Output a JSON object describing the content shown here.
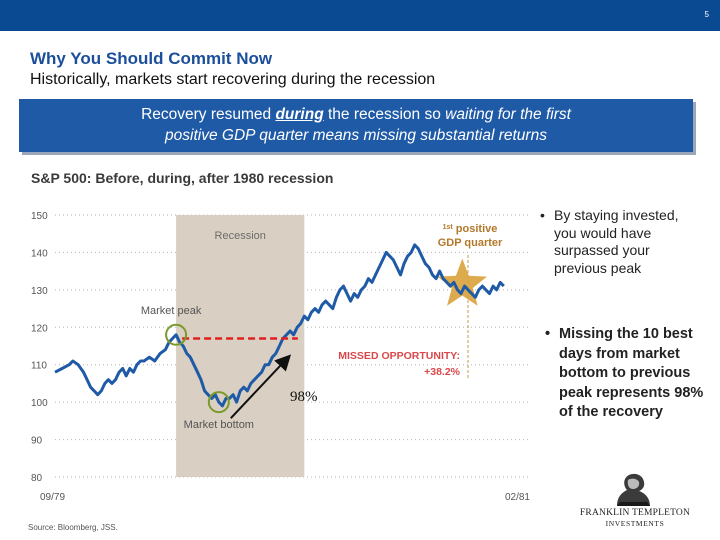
{
  "slide": {
    "page_number": "5",
    "title": "Why You Should Commit Now",
    "subtitle": "Historically, markets start recovering during the recession",
    "banner": {
      "line1_pre": "Recovery resumed ",
      "line1_emph": "during",
      "line1_post": " the recession so ",
      "line1_italic": "waiting for the first",
      "line2": "positive GDP quarter means missing substantial returns"
    },
    "bullets": [
      "By staying invested, you would have surpassed your previous peak",
      "Missing the 10 best days from market bottom to previous peak represents 98% of the recovery"
    ],
    "source": "Source: Bloomberg, JSS.",
    "logo": {
      "line1": "FRANKLIN TEMPLETON",
      "line2": "INVESTMENTS"
    }
  },
  "chart_data": {
    "type": "line",
    "title": "S&P 500: Before, during, after 1980 recession",
    "xlabel": "",
    "ylabel": "",
    "x_ticks": [
      "09/79",
      "02/81"
    ],
    "y_ticks": [
      80,
      90,
      100,
      110,
      120,
      130,
      140,
      150
    ],
    "ylim": [
      80,
      150
    ],
    "x_range_days": [
      0,
      520
    ],
    "series": [
      {
        "name": "S&P 500",
        "points": [
          [
            0,
            108
          ],
          [
            8,
            109
          ],
          [
            16,
            110
          ],
          [
            20,
            111
          ],
          [
            26,
            110
          ],
          [
            32,
            108
          ],
          [
            36,
            106
          ],
          [
            40,
            104
          ],
          [
            44,
            103
          ],
          [
            48,
            102
          ],
          [
            52,
            103
          ],
          [
            56,
            105
          ],
          [
            60,
            106
          ],
          [
            64,
            105
          ],
          [
            68,
            106
          ],
          [
            72,
            108
          ],
          [
            76,
            109
          ],
          [
            80,
            107
          ],
          [
            84,
            109
          ],
          [
            88,
            108
          ],
          [
            92,
            110
          ],
          [
            96,
            111
          ],
          [
            100,
            111
          ],
          [
            106,
            112
          ],
          [
            112,
            111
          ],
          [
            118,
            113
          ],
          [
            124,
            114
          ],
          [
            128,
            116
          ],
          [
            132,
            117
          ],
          [
            136,
            118
          ],
          [
            140,
            116
          ],
          [
            144,
            115
          ],
          [
            148,
            113
          ],
          [
            152,
            112
          ],
          [
            156,
            110
          ],
          [
            160,
            108
          ],
          [
            164,
            106
          ],
          [
            168,
            103
          ],
          [
            172,
            102
          ],
          [
            176,
            101
          ],
          [
            180,
            102
          ],
          [
            184,
            100
          ],
          [
            188,
            99
          ],
          [
            192,
            101
          ],
          [
            196,
            101
          ],
          [
            200,
            102
          ],
          [
            204,
            100
          ],
          [
            208,
            103
          ],
          [
            212,
            104
          ],
          [
            216,
            103
          ],
          [
            220,
            105
          ],
          [
            224,
            106
          ],
          [
            228,
            107
          ],
          [
            232,
            108
          ],
          [
            236,
            110
          ],
          [
            240,
            110
          ],
          [
            244,
            112
          ],
          [
            248,
            113
          ],
          [
            252,
            115
          ],
          [
            256,
            117
          ],
          [
            260,
            118
          ],
          [
            264,
            119
          ],
          [
            268,
            118
          ],
          [
            272,
            120
          ],
          [
            276,
            121
          ],
          [
            280,
            123
          ],
          [
            284,
            122
          ],
          [
            288,
            124
          ],
          [
            292,
            125
          ],
          [
            296,
            124
          ],
          [
            300,
            126
          ],
          [
            304,
            127
          ],
          [
            308,
            126
          ],
          [
            312,
            125
          ],
          [
            316,
            128
          ],
          [
            320,
            130
          ],
          [
            324,
            131
          ],
          [
            328,
            129
          ],
          [
            332,
            127
          ],
          [
            336,
            129
          ],
          [
            340,
            128
          ],
          [
            344,
            130
          ],
          [
            348,
            131
          ],
          [
            352,
            133
          ],
          [
            356,
            132
          ],
          [
            360,
            134
          ],
          [
            364,
            136
          ],
          [
            368,
            138
          ],
          [
            372,
            140
          ],
          [
            376,
            139
          ],
          [
            380,
            138
          ],
          [
            384,
            136
          ],
          [
            388,
            134
          ],
          [
            392,
            137
          ],
          [
            396,
            139
          ],
          [
            400,
            140
          ],
          [
            404,
            142
          ],
          [
            408,
            141
          ],
          [
            412,
            139
          ],
          [
            416,
            137
          ],
          [
            420,
            136
          ],
          [
            424,
            134
          ],
          [
            428,
            133
          ],
          [
            432,
            135
          ],
          [
            436,
            133
          ],
          [
            440,
            132
          ],
          [
            444,
            131
          ],
          [
            448,
            132
          ],
          [
            452,
            130
          ],
          [
            456,
            129
          ],
          [
            460,
            131
          ],
          [
            464,
            130
          ],
          [
            468,
            129
          ],
          [
            472,
            128
          ],
          [
            476,
            130
          ],
          [
            480,
            131
          ],
          [
            484,
            130
          ],
          [
            488,
            129
          ],
          [
            492,
            131
          ],
          [
            496,
            130
          ],
          [
            500,
            132
          ],
          [
            504,
            131
          ]
        ]
      }
    ],
    "annotations": {
      "recession_label": "Recession",
      "recession_range_days": [
        136,
        280
      ],
      "first_positive_gdp_label_sup": "1st",
      "first_positive_gdp_label_line1": " positive",
      "first_positive_gdp_label_line2": "GDP quarter",
      "first_positive_gdp_day": 435,
      "market_peak_label": "Market peak",
      "market_peak_day": 136,
      "market_bottom_label": "Market bottom",
      "market_bottom_day": 184,
      "missed_label": "MISSED OPPORTUNITY:",
      "missed_value": "+38.2%",
      "recovery_pct_label": "98%",
      "previous_peak_level": 117,
      "peak_recovered_day": 266
    }
  }
}
